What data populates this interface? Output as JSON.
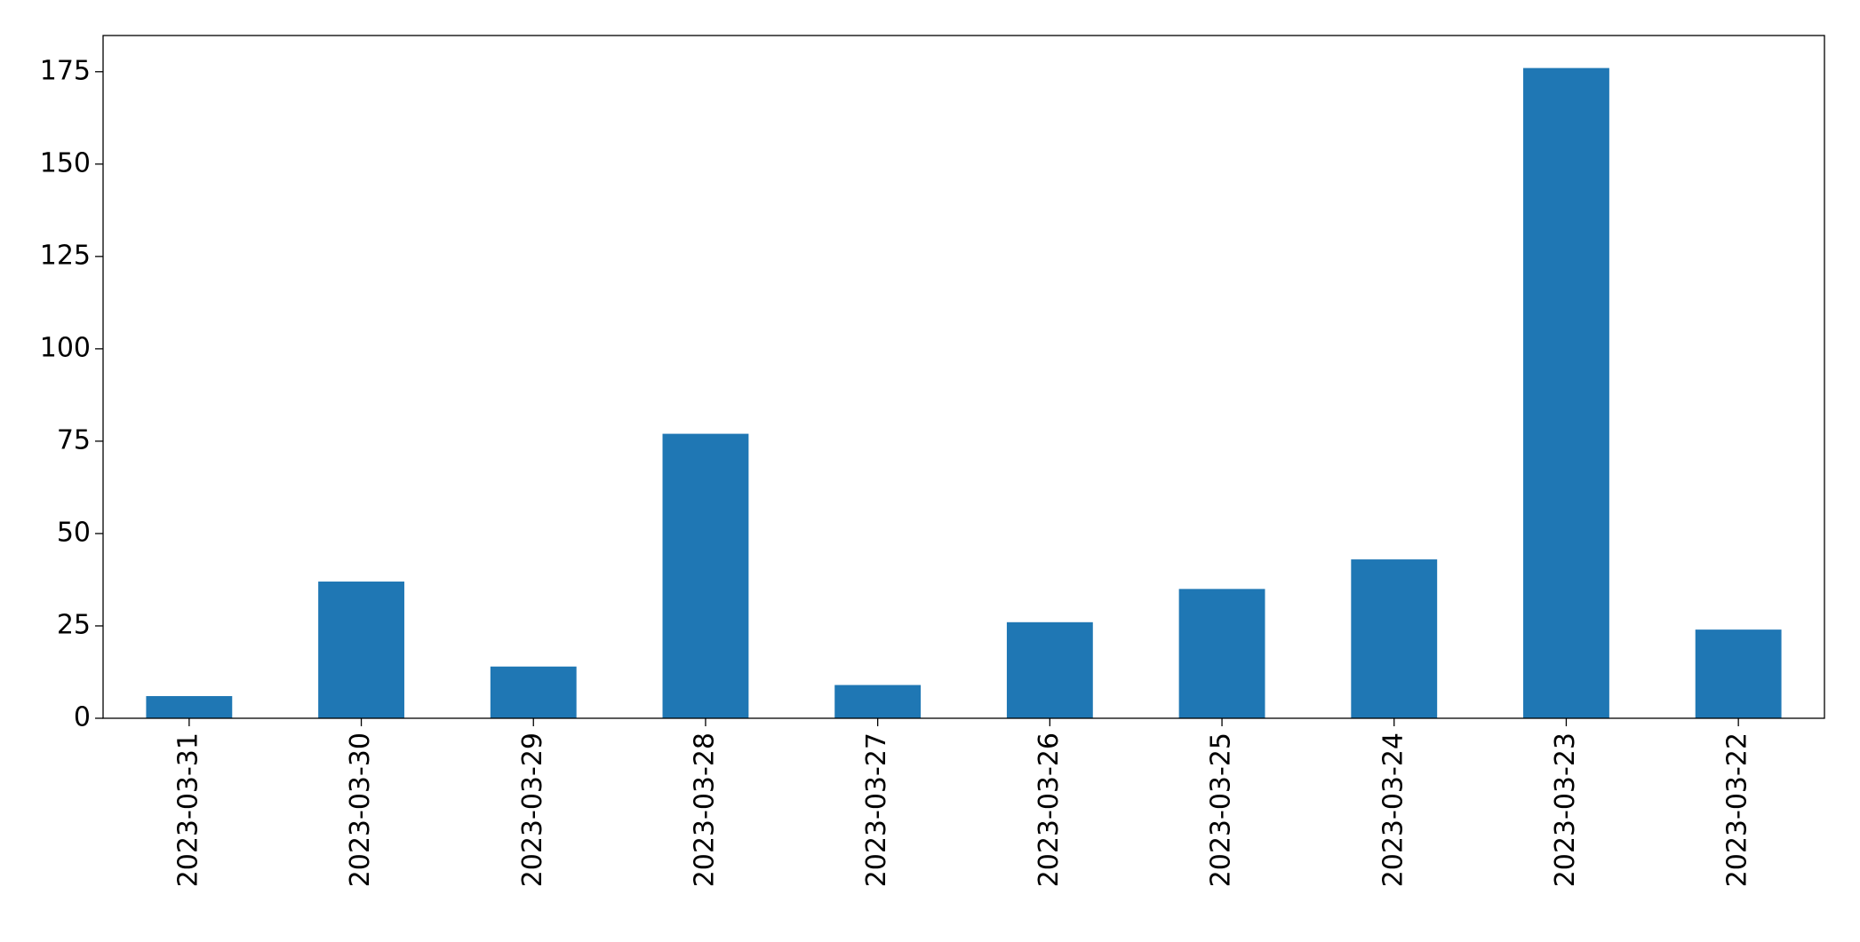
{
  "chart_data": {
    "type": "bar",
    "categories": [
      "2023-03-31",
      "2023-03-30",
      "2023-03-29",
      "2023-03-28",
      "2023-03-27",
      "2023-03-26",
      "2023-03-25",
      "2023-03-24",
      "2023-03-23",
      "2023-03-22"
    ],
    "values": [
      6,
      37,
      14,
      77,
      9,
      26,
      35,
      43,
      176,
      24
    ],
    "color": "#1f77b4",
    "ylim": [
      0,
      184.8
    ],
    "yticks": [
      0,
      25,
      50,
      75,
      100,
      125,
      150,
      175
    ],
    "grid": false
  }
}
